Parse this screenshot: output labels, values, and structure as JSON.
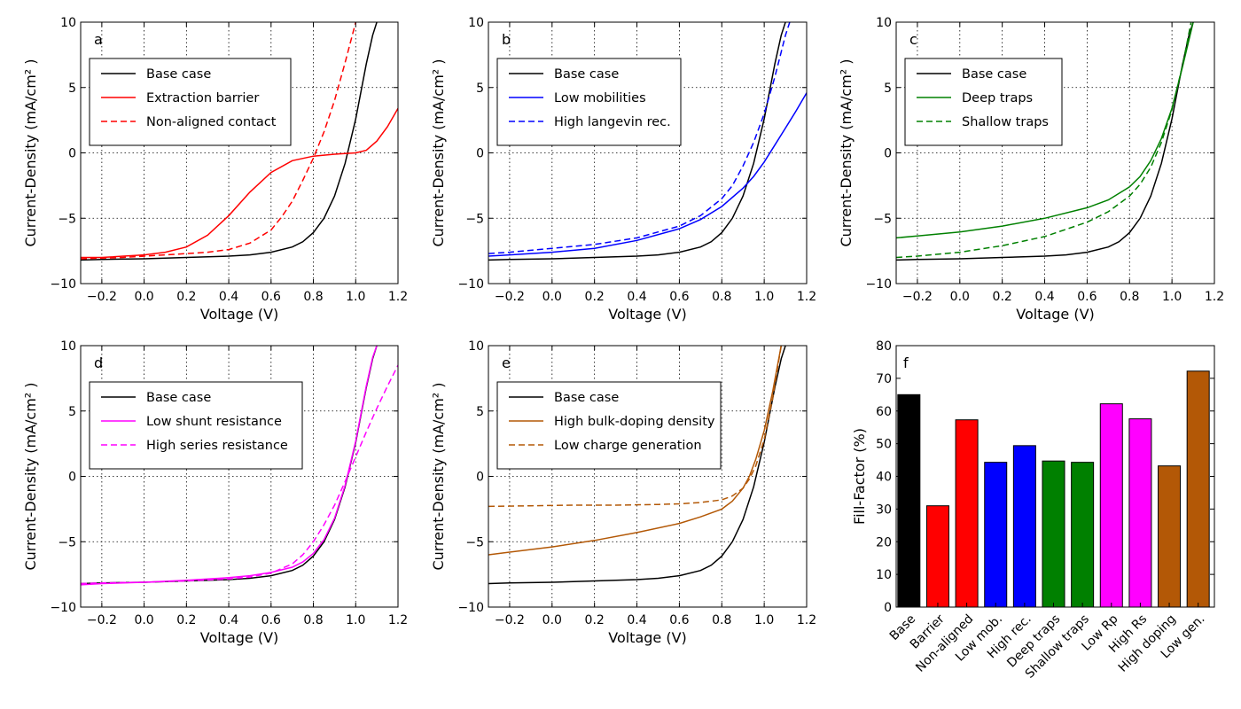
{
  "chart_data": [
    {
      "panel": "a",
      "type": "line",
      "xlabel": "Voltage (V)",
      "ylabel": "Current-Density (mA/cm² )",
      "xlim": [
        -0.3,
        1.2
      ],
      "ylim": [
        -10,
        10
      ],
      "xticks": [
        "−0.2",
        "0.0",
        "0.2",
        "0.4",
        "0.6",
        "0.8",
        "1.0",
        "1.2"
      ],
      "yticks": [
        "−10",
        "−5",
        "0",
        "5",
        "10"
      ],
      "grid": true,
      "legend_position": "top-left",
      "series": [
        {
          "name": "Base case",
          "color": "#000000",
          "dash": "solid",
          "x": [
            -0.3,
            -0.2,
            0,
            0.2,
            0.4,
            0.5,
            0.6,
            0.7,
            0.75,
            0.8,
            0.85,
            0.9,
            0.95,
            1.0,
            1.05,
            1.08,
            1.1
          ],
          "y": [
            -8.2,
            -8.15,
            -8.1,
            -8.0,
            -7.9,
            -7.8,
            -7.6,
            -7.2,
            -6.8,
            -6.1,
            -5.0,
            -3.3,
            -0.8,
            2.6,
            6.8,
            9.0,
            10.0
          ]
        },
        {
          "name": "Extraction barrier",
          "color": "#ff0000",
          "dash": "solid",
          "x": [
            -0.3,
            -0.2,
            0,
            0.1,
            0.2,
            0.3,
            0.4,
            0.5,
            0.6,
            0.7,
            0.8,
            0.9,
            1.0,
            1.05,
            1.1,
            1.15,
            1.2
          ],
          "y": [
            -8.0,
            -8.0,
            -7.8,
            -7.6,
            -7.2,
            -6.3,
            -4.8,
            -3.0,
            -1.5,
            -0.6,
            -0.25,
            -0.1,
            0.0,
            0.2,
            0.9,
            2.0,
            3.4
          ]
        },
        {
          "name": "Non-aligned contact",
          "color": "#ff0000",
          "dash": "dashed",
          "x": [
            -0.3,
            -0.1,
            0.1,
            0.3,
            0.4,
            0.5,
            0.6,
            0.65,
            0.7,
            0.75,
            0.8,
            0.85,
            0.9,
            0.95,
            1.0
          ],
          "y": [
            -8.1,
            -8.0,
            -7.8,
            -7.6,
            -7.4,
            -6.9,
            -5.9,
            -4.9,
            -3.7,
            -2.1,
            -0.4,
            1.6,
            4.0,
            6.9,
            10.0
          ]
        }
      ]
    },
    {
      "panel": "b",
      "type": "line",
      "xlabel": "Voltage (V)",
      "ylabel": "Current-Density (mA/cm² )",
      "xlim": [
        -0.3,
        1.2
      ],
      "ylim": [
        -10,
        10
      ],
      "xticks": [
        "−0.2",
        "0.0",
        "0.2",
        "0.4",
        "0.6",
        "0.8",
        "1.0",
        "1.2"
      ],
      "yticks": [
        "−10",
        "−5",
        "0",
        "5",
        "10"
      ],
      "grid": true,
      "legend_position": "top-left",
      "series": [
        {
          "name": "Base case",
          "color": "#000000",
          "dash": "solid",
          "x": [
            -0.3,
            -0.2,
            0,
            0.2,
            0.4,
            0.5,
            0.6,
            0.7,
            0.75,
            0.8,
            0.85,
            0.9,
            0.95,
            1.0,
            1.05,
            1.08,
            1.1
          ],
          "y": [
            -8.2,
            -8.15,
            -8.1,
            -8.0,
            -7.9,
            -7.8,
            -7.6,
            -7.2,
            -6.8,
            -6.1,
            -5.0,
            -3.3,
            -0.8,
            2.6,
            6.8,
            9.0,
            10.0
          ]
        },
        {
          "name": "Low mobilities",
          "color": "#0000ff",
          "dash": "solid",
          "x": [
            -0.3,
            -0.2,
            0,
            0.2,
            0.4,
            0.6,
            0.7,
            0.8,
            0.9,
            0.95,
            1.0,
            1.05,
            1.1,
            1.15,
            1.2
          ],
          "y": [
            -7.9,
            -7.8,
            -7.6,
            -7.3,
            -6.7,
            -5.8,
            -5.1,
            -4.1,
            -2.7,
            -1.8,
            -0.7,
            0.6,
            1.9,
            3.2,
            4.6
          ]
        },
        {
          "name": "High langevin rec.",
          "color": "#0000ff",
          "dash": "dashed",
          "x": [
            -0.3,
            -0.2,
            0,
            0.2,
            0.4,
            0.6,
            0.7,
            0.8,
            0.85,
            0.9,
            0.95,
            1.0,
            1.05,
            1.1,
            1.12
          ],
          "y": [
            -7.7,
            -7.6,
            -7.3,
            -7.0,
            -6.5,
            -5.6,
            -4.8,
            -3.5,
            -2.5,
            -1.0,
            0.8,
            3.0,
            5.8,
            9.0,
            10.0
          ]
        }
      ]
    },
    {
      "panel": "c",
      "type": "line",
      "xlabel": "Voltage (V)",
      "ylabel": "Current-Density (mA/cm² )",
      "xlim": [
        -0.3,
        1.2
      ],
      "ylim": [
        -10,
        10
      ],
      "xticks": [
        "−0.2",
        "0.0",
        "0.2",
        "0.4",
        "0.6",
        "0.8",
        "1.0",
        "1.2"
      ],
      "yticks": [
        "−10",
        "−5",
        "0",
        "5",
        "10"
      ],
      "grid": true,
      "legend_position": "top-left",
      "series": [
        {
          "name": "Base case",
          "color": "#000000",
          "dash": "solid",
          "x": [
            -0.3,
            -0.2,
            0,
            0.2,
            0.4,
            0.5,
            0.6,
            0.7,
            0.75,
            0.8,
            0.85,
            0.9,
            0.95,
            1.0,
            1.05,
            1.08,
            1.1
          ],
          "y": [
            -8.2,
            -8.15,
            -8.1,
            -8.0,
            -7.9,
            -7.8,
            -7.6,
            -7.2,
            -6.8,
            -6.1,
            -5.0,
            -3.3,
            -0.8,
            2.6,
            6.8,
            9.0,
            10.0
          ]
        },
        {
          "name": "Deep traps",
          "color": "#008000",
          "dash": "solid",
          "x": [
            -0.3,
            -0.2,
            0,
            0.2,
            0.4,
            0.6,
            0.7,
            0.8,
            0.85,
            0.9,
            0.95,
            1.0,
            1.05,
            1.1
          ],
          "y": [
            -6.5,
            -6.35,
            -6.05,
            -5.6,
            -5.0,
            -4.2,
            -3.6,
            -2.6,
            -1.8,
            -0.6,
            1.1,
            3.4,
            6.6,
            10.0
          ]
        },
        {
          "name": "Shallow traps",
          "color": "#008000",
          "dash": "dashed",
          "x": [
            -0.3,
            -0.2,
            0,
            0.2,
            0.4,
            0.6,
            0.7,
            0.8,
            0.85,
            0.9,
            0.95,
            1.0,
            1.05,
            1.09
          ],
          "y": [
            -8.0,
            -7.9,
            -7.6,
            -7.1,
            -6.4,
            -5.3,
            -4.5,
            -3.3,
            -2.4,
            -1.1,
            0.8,
            3.3,
            6.7,
            10.0
          ]
        }
      ]
    },
    {
      "panel": "d",
      "type": "line",
      "xlabel": "Voltage (V)",
      "ylabel": "Current-Density (mA/cm² )",
      "xlim": [
        -0.3,
        1.2
      ],
      "ylim": [
        -10,
        10
      ],
      "xticks": [
        "−0.2",
        "0.0",
        "0.2",
        "0.4",
        "0.6",
        "0.8",
        "1.0",
        "1.2"
      ],
      "yticks": [
        "−10",
        "−5",
        "0",
        "5",
        "10"
      ],
      "grid": true,
      "legend_position": "top-left",
      "series": [
        {
          "name": "Base case",
          "color": "#000000",
          "dash": "solid",
          "x": [
            -0.3,
            -0.2,
            0,
            0.2,
            0.4,
            0.5,
            0.6,
            0.7,
            0.75,
            0.8,
            0.85,
            0.9,
            0.95,
            1.0,
            1.05,
            1.08,
            1.1
          ],
          "y": [
            -8.2,
            -8.15,
            -8.1,
            -8.0,
            -7.9,
            -7.8,
            -7.6,
            -7.2,
            -6.8,
            -6.1,
            -5.0,
            -3.3,
            -0.8,
            2.6,
            6.8,
            9.0,
            10.0
          ]
        },
        {
          "name": "Low shunt resistance",
          "color": "#ff00ff",
          "dash": "solid",
          "x": [
            -0.3,
            -0.2,
            0,
            0.2,
            0.4,
            0.5,
            0.6,
            0.7,
            0.75,
            0.8,
            0.85,
            0.9,
            0.95,
            1.0,
            1.05,
            1.08,
            1.1
          ],
          "y": [
            -8.3,
            -8.2,
            -8.1,
            -7.95,
            -7.75,
            -7.6,
            -7.35,
            -6.95,
            -6.55,
            -5.9,
            -4.85,
            -3.2,
            -0.7,
            2.7,
            6.9,
            9.1,
            10.0
          ]
        },
        {
          "name": "High series resistance",
          "color": "#ff00ff",
          "dash": "dashed",
          "x": [
            -0.3,
            -0.2,
            0,
            0.2,
            0.4,
            0.5,
            0.6,
            0.7,
            0.75,
            0.8,
            0.85,
            0.9,
            0.95,
            1.0,
            1.05,
            1.1,
            1.15,
            1.2
          ],
          "y": [
            -8.2,
            -8.15,
            -8.1,
            -8.0,
            -7.85,
            -7.7,
            -7.4,
            -6.7,
            -6.0,
            -5.0,
            -3.7,
            -2.2,
            -0.4,
            1.5,
            3.4,
            5.2,
            6.9,
            8.5
          ]
        }
      ]
    },
    {
      "panel": "e",
      "type": "line",
      "xlabel": "Voltage (V)",
      "ylabel": "Current-Density (mA/cm² )",
      "xlim": [
        -0.3,
        1.2
      ],
      "ylim": [
        -10,
        10
      ],
      "xticks": [
        "−0.2",
        "0.0",
        "0.2",
        "0.4",
        "0.6",
        "0.8",
        "1.0",
        "1.2"
      ],
      "yticks": [
        "−10",
        "−5",
        "0",
        "5",
        "10"
      ],
      "grid": true,
      "legend_position": "top-left",
      "series": [
        {
          "name": "Base case",
          "color": "#000000",
          "dash": "solid",
          "x": [
            -0.3,
            -0.2,
            0,
            0.2,
            0.4,
            0.5,
            0.6,
            0.7,
            0.75,
            0.8,
            0.85,
            0.9,
            0.95,
            1.0,
            1.05,
            1.08,
            1.1
          ],
          "y": [
            -8.2,
            -8.15,
            -8.1,
            -8.0,
            -7.9,
            -7.8,
            -7.6,
            -7.2,
            -6.8,
            -6.1,
            -5.0,
            -3.3,
            -0.8,
            2.6,
            6.8,
            9.0,
            10.0
          ]
        },
        {
          "name": "High bulk-doping density",
          "color": "#b35806",
          "dash": "solid",
          "x": [
            -0.3,
            -0.2,
            0,
            0.2,
            0.4,
            0.6,
            0.7,
            0.8,
            0.85,
            0.9,
            0.93,
            0.96,
            1.0,
            1.04,
            1.08
          ],
          "y": [
            -6.0,
            -5.8,
            -5.4,
            -4.9,
            -4.3,
            -3.6,
            -3.1,
            -2.5,
            -1.9,
            -0.9,
            0.0,
            1.3,
            3.5,
            6.5,
            10.0
          ]
        },
        {
          "name": "Low charge generation",
          "color": "#b35806",
          "dash": "dashed",
          "x": [
            -0.3,
            -0.1,
            0.1,
            0.3,
            0.5,
            0.6,
            0.7,
            0.8,
            0.85,
            0.9,
            0.93,
            0.96,
            1.0,
            1.04,
            1.08
          ],
          "y": [
            -2.3,
            -2.25,
            -2.2,
            -2.2,
            -2.15,
            -2.1,
            -2.0,
            -1.8,
            -1.5,
            -0.9,
            -0.2,
            0.8,
            2.8,
            6.0,
            10.0
          ]
        }
      ]
    },
    {
      "panel": "f",
      "type": "bar",
      "ylabel": "Fill-Factor (%)",
      "ylim": [
        0,
        80
      ],
      "yticks": [
        "0",
        "10",
        "20",
        "30",
        "40",
        "50",
        "60",
        "70",
        "80"
      ],
      "grid": false,
      "categories": [
        "Base",
        "Barrier",
        "Non-aligned",
        "Low mob.",
        "High rec.",
        "Deep traps",
        "Shallow traps",
        "Low Rp",
        "High Rs",
        "High doping",
        "Low gen."
      ],
      "values": [
        65,
        31,
        57.3,
        44.3,
        49.4,
        44.7,
        44.3,
        62.2,
        57.6,
        43.2,
        72.2
      ],
      "colors": [
        "#000000",
        "#ff0000",
        "#ff0000",
        "#0000ff",
        "#0000ff",
        "#008000",
        "#008000",
        "#ff00ff",
        "#ff00ff",
        "#b35806",
        "#b35806"
      ]
    }
  ]
}
